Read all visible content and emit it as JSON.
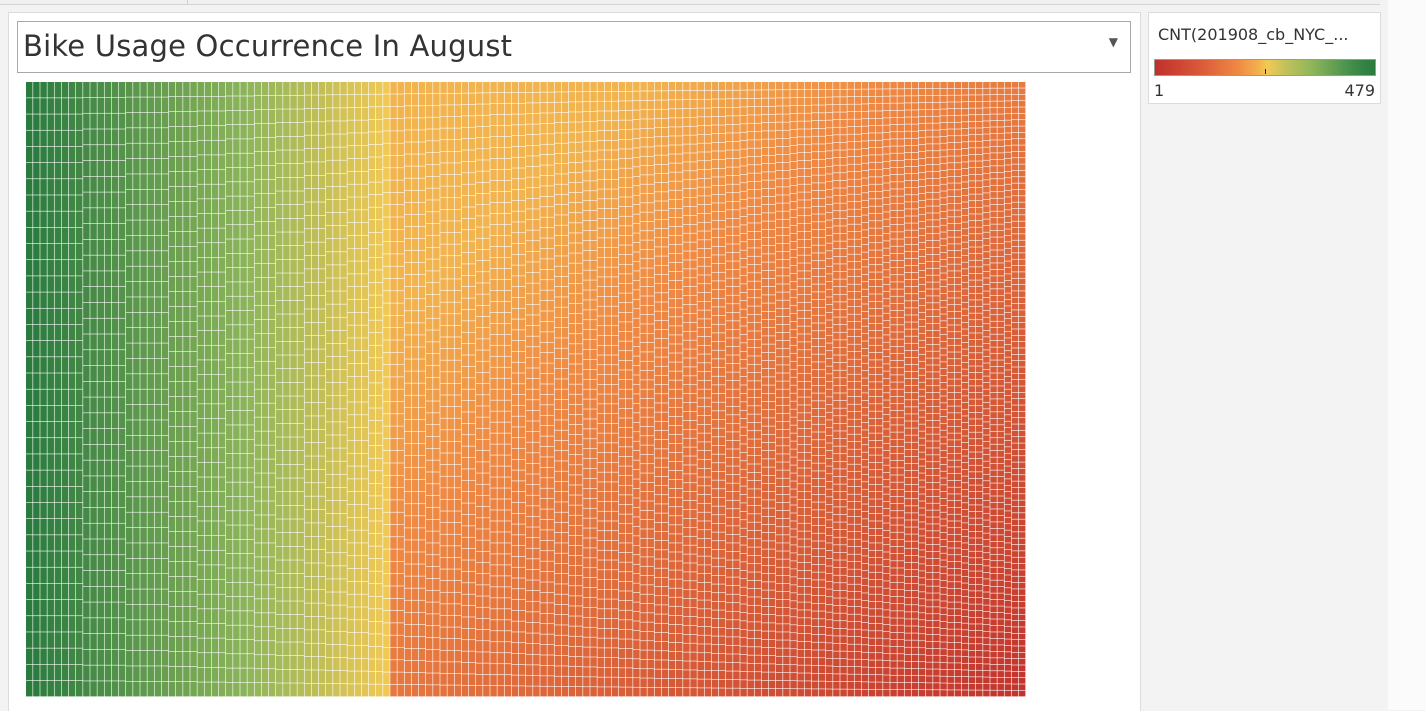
{
  "title": "Bike Usage Occurrence In August",
  "legend": {
    "title": "CNT(201908_cb_NYC_...",
    "min_label": "1",
    "max_label": "479",
    "colors": [
      "#c0302c",
      "#ef8a44",
      "#f2c955",
      "#8cb45a",
      "#2a7a3e"
    ]
  },
  "chart_data": {
    "type": "heatmap",
    "measure": "CNT(201908_cb_NYC_...",
    "value_range": [
      1,
      479
    ],
    "layout": "treemap"
  }
}
